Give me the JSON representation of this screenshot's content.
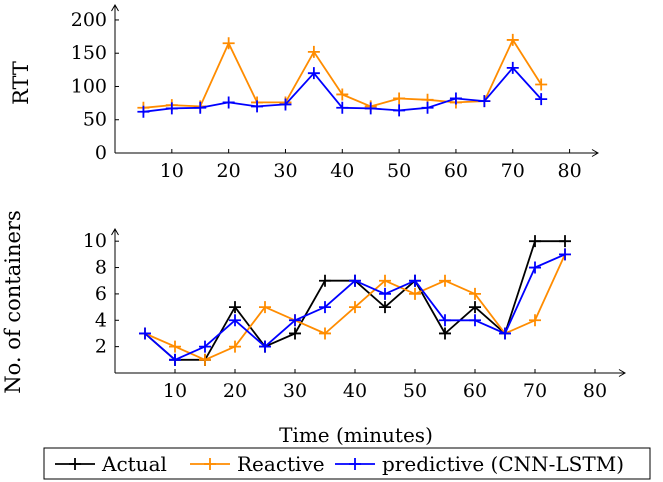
{
  "chart_data": [
    {
      "type": "line",
      "title": "",
      "xlabel": "",
      "ylabel": "RTT",
      "xlim": [
        0,
        85
      ],
      "ylim": [
        0,
        230
      ],
      "xticks": [
        10,
        20,
        30,
        40,
        50,
        60,
        70,
        80
      ],
      "yticks": [
        0,
        50,
        100,
        150,
        200
      ],
      "x": [
        5,
        10,
        15,
        20,
        25,
        30,
        35,
        40,
        45,
        50,
        55,
        60,
        65,
        70,
        75
      ],
      "series": [
        {
          "name": "Reactive",
          "color": "#ff8c00",
          "values": [
            68,
            72,
            70,
            165,
            76,
            76,
            152,
            88,
            70,
            82,
            80,
            76,
            78,
            170,
            103
          ]
        },
        {
          "name": "predictive (CNN-LSTM)",
          "color": "#0000ff",
          "values": [
            62,
            67,
            68,
            76,
            70,
            73,
            120,
            68,
            67,
            64,
            68,
            82,
            78,
            128,
            81
          ]
        }
      ]
    },
    {
      "type": "line",
      "title": "",
      "xlabel": "Time (minutes)",
      "ylabel": "No. of containers",
      "xlim": [
        0,
        85
      ],
      "ylim": [
        0,
        11
      ],
      "xticks": [
        10,
        20,
        30,
        40,
        50,
        60,
        70,
        80
      ],
      "yticks": [
        2,
        4,
        6,
        8,
        10
      ],
      "x": [
        5,
        10,
        15,
        20,
        25,
        30,
        35,
        40,
        45,
        50,
        55,
        60,
        65,
        70,
        75
      ],
      "series": [
        {
          "name": "Actual",
          "color": "#000000",
          "values": [
            3,
            1,
            1,
            5,
            2,
            3,
            7,
            7,
            5,
            7,
            3,
            5,
            3,
            10,
            10
          ]
        },
        {
          "name": "Reactive",
          "color": "#ff8c00",
          "values": [
            3,
            2,
            1,
            2,
            5,
            4,
            3,
            5,
            7,
            6,
            7,
            6,
            3,
            4,
            9
          ]
        },
        {
          "name": "predictive (CNN-LSTM)",
          "color": "#0000ff",
          "values": [
            3,
            1,
            2,
            4,
            2,
            4,
            5,
            7,
            6,
            7,
            4,
            4,
            3,
            8,
            9
          ]
        }
      ]
    }
  ],
  "legend": {
    "position": "bottom",
    "items": [
      {
        "label": "Actual",
        "color": "#000000"
      },
      {
        "label": "Reactive",
        "color": "#ff8c00"
      },
      {
        "label": "predictive (CNN-LSTM)",
        "color": "#0000ff"
      }
    ]
  }
}
